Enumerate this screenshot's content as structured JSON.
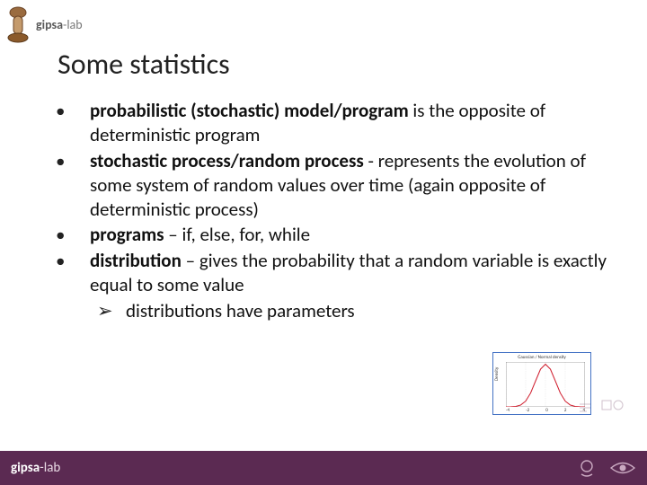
{
  "brand": {
    "bold": "gipsa",
    "light": "-lab"
  },
  "title": "Some statistics",
  "bullets": [
    {
      "bold": "probabilistic (stochastic) model/program",
      "rest": " is the opposite of deterministic program"
    },
    {
      "bold": "stochastic process/random process",
      "rest": " - represents the evolution of some system of random values over time (again opposite of deterministic process)"
    },
    {
      "bold": "programs",
      "rest": " – if, else, for, while"
    },
    {
      "bold": "distribution",
      "rest": " – gives the probability that a random variable is exactly equal to some value",
      "sub": [
        "distributions have parameters"
      ]
    }
  ],
  "chart": {
    "type": "line",
    "title": "Gaussian / Normal density",
    "ylabel": "Density",
    "curve_color": "#d02030",
    "axis_color": "#333333",
    "grid_color": "#bfbfbf",
    "background": "#ffffff",
    "xlim": [
      -4,
      4
    ],
    "ylim": [
      0,
      0.42
    ],
    "xticks": [
      -4,
      -2,
      0,
      2,
      4
    ],
    "line_width": 1.2,
    "points": [
      {
        "x": -4.0,
        "y": 0.0001
      },
      {
        "x": -3.5,
        "y": 0.0009
      },
      {
        "x": -3.0,
        "y": 0.0044
      },
      {
        "x": -2.5,
        "y": 0.0175
      },
      {
        "x": -2.0,
        "y": 0.054
      },
      {
        "x": -1.5,
        "y": 0.1295
      },
      {
        "x": -1.0,
        "y": 0.242
      },
      {
        "x": -0.5,
        "y": 0.3521
      },
      {
        "x": 0.0,
        "y": 0.3989
      },
      {
        "x": 0.5,
        "y": 0.3521
      },
      {
        "x": 1.0,
        "y": 0.242
      },
      {
        "x": 1.5,
        "y": 0.1295
      },
      {
        "x": 2.0,
        "y": 0.054
      },
      {
        "x": 2.5,
        "y": 0.0175
      },
      {
        "x": 3.0,
        "y": 0.0044
      },
      {
        "x": 3.5,
        "y": 0.0009
      },
      {
        "x": 4.0,
        "y": 0.0001
      }
    ]
  },
  "footer_brand": {
    "bold": "gipsa",
    "light": "-lab"
  },
  "colors": {
    "footer_bg": "#5b2a52",
    "title_color": "#222222",
    "text_color": "#111111",
    "brand_gray": "#7a7a7a"
  }
}
